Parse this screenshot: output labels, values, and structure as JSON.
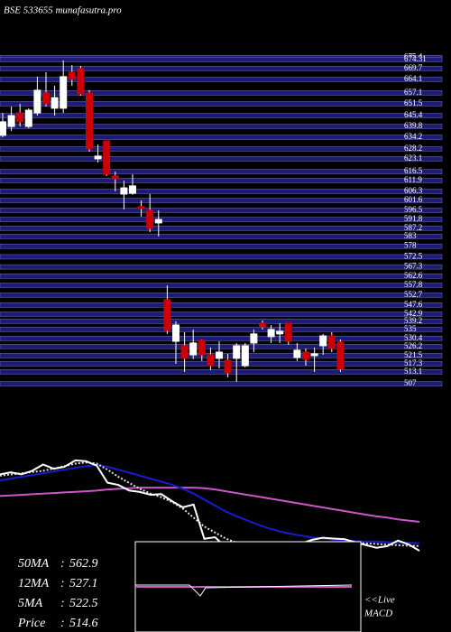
{
  "chart_data": [
    {
      "type": "candlestick",
      "title": "BSE 533655 munafasutra.pro",
      "up_color": "#ffffff",
      "down_color": "#cc0000",
      "grid_color": "#1c1c78",
      "ylim": [
        507,
        674.31
      ],
      "yticks": [
        675.4,
        674.31,
        669.7,
        664.1,
        657.1,
        651.5,
        645.4,
        639.8,
        634.2,
        628.2,
        623.1,
        616.5,
        611.9,
        606.3,
        601.6,
        596.5,
        591.8,
        587.2,
        583,
        578,
        572.5,
        567.3,
        562.6,
        557.8,
        552.7,
        547.6,
        542.9,
        539.2,
        535,
        530.4,
        526.2,
        521.5,
        517.3,
        513.1,
        507
      ],
      "candles": [
        [
          635.2,
          646.8,
          634.2,
          642.2
        ],
        [
          639.8,
          650.1,
          637.5,
          645.4
        ],
        [
          646.8,
          651.5,
          639.8,
          642.2
        ],
        [
          639.8,
          649.2,
          638.9,
          648.2
        ],
        [
          646.8,
          665.5,
          645.4,
          658.5
        ],
        [
          657.1,
          667.8,
          650.1,
          651.5
        ],
        [
          649.2,
          660.8,
          645.4,
          654.7
        ],
        [
          649.2,
          673.9,
          646.8,
          665.5
        ],
        [
          667.8,
          671.5,
          660.8,
          664.1
        ],
        [
          669.7,
          671.0,
          655.7,
          656.6
        ],
        [
          657.1,
          658.5,
          626.8,
          628.2
        ],
        [
          623.1,
          630.5,
          621.2,
          624.5
        ],
        [
          632.4,
          632.4,
          614.2,
          615.1
        ],
        [
          614.2,
          616.5,
          606.3,
          612.8
        ],
        [
          604.9,
          611.9,
          597.0,
          608.1
        ],
        [
          605.3,
          615.1,
          604.5,
          609.1
        ],
        [
          598.4,
          601.6,
          593.3,
          597.4
        ],
        [
          596.5,
          604.9,
          585.3,
          587.2
        ],
        [
          590.0,
          596.5,
          583.0,
          591.8
        ],
        [
          550.4,
          557.8,
          532.7,
          534.5
        ],
        [
          528.9,
          539.2,
          517.3,
          537.3
        ],
        [
          526.6,
          533.6,
          513.1,
          520.1
        ],
        [
          521.9,
          535.0,
          519.6,
          528.0
        ],
        [
          529.4,
          529.9,
          518.7,
          521.9
        ],
        [
          521.9,
          525.7,
          514.0,
          516.3
        ],
        [
          520.1,
          528.9,
          514.9,
          523.3
        ],
        [
          519.1,
          522.4,
          510.3,
          512.6
        ],
        [
          520.1,
          528.0,
          507.9,
          526.6
        ],
        [
          516.3,
          528.0,
          515.4,
          526.6
        ],
        [
          528.0,
          535.0,
          523.3,
          532.7
        ],
        [
          538.2,
          539.6,
          535.0,
          536.4
        ],
        [
          531.3,
          537.3,
          528.0,
          535.0
        ],
        [
          532.7,
          538.2,
          528.0,
          534.1
        ],
        [
          538.2,
          538.2,
          527.1,
          528.9
        ],
        [
          520.5,
          528.0,
          518.7,
          524.3
        ],
        [
          523.3,
          525.2,
          516.3,
          519.6
        ],
        [
          521.5,
          525.7,
          513.1,
          522.4
        ],
        [
          526.6,
          532.7,
          521.9,
          531.7
        ],
        [
          531.7,
          533.6,
          523.3,
          525.2
        ],
        [
          528.5,
          529.9,
          513.1,
          514.6
        ]
      ]
    },
    {
      "type": "line",
      "ylim": [
        480,
        700
      ],
      "price_label": "Price",
      "price_color": "#ffffff",
      "legend_separator": ":",
      "macd_label": [
        "<<Live",
        "MACD"
      ],
      "series": [
        {
          "name": "50MA",
          "color": "#cc55cc",
          "values": [
            606,
            607,
            608,
            609,
            610,
            611,
            612,
            613,
            614,
            615,
            617,
            618,
            619,
            620,
            620,
            620,
            620,
            620,
            620,
            619,
            617,
            614,
            611,
            608,
            605,
            602,
            599,
            596,
            593,
            590,
            587,
            584,
            581,
            578,
            575,
            572,
            570,
            567,
            565,
            562.9
          ]
        },
        {
          "name": "12MA",
          "color": "#1a1ad0",
          "values": [
            632,
            635,
            638,
            641,
            644,
            647,
            650,
            653,
            656,
            658,
            655,
            650,
            645,
            640,
            635,
            630,
            625,
            618,
            610,
            600,
            590,
            580,
            572,
            565,
            558,
            552,
            547,
            543,
            540,
            537,
            535,
            533,
            532,
            531,
            530,
            530,
            529,
            528,
            528,
            527.1
          ]
        },
        {
          "name": "5MA",
          "color": "#dddddd",
          "values": [
            640,
            642,
            644,
            646,
            648,
            652,
            656,
            660,
            662,
            660,
            650,
            638,
            628,
            618,
            610,
            604,
            596,
            585,
            570,
            555,
            545,
            535,
            528,
            524,
            522,
            521,
            520,
            521,
            523,
            525,
            527,
            528,
            529,
            528,
            527,
            526,
            525,
            524,
            523,
            522.5
          ]
        }
      ]
    }
  ]
}
